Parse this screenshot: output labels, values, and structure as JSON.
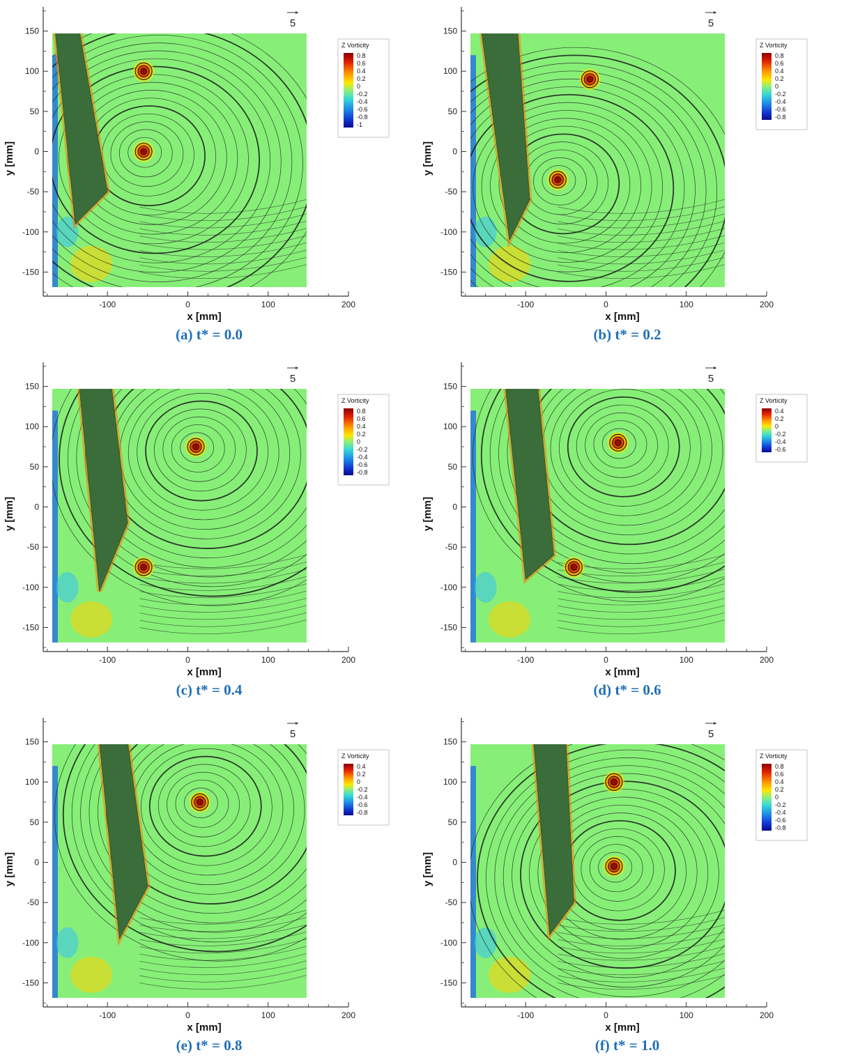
{
  "chart_data": [
    {
      "type": "heatmap",
      "title": "(a) t* = 0.0",
      "xlabel": "x [mm]",
      "ylabel": "y [mm]",
      "xlim": [
        -180,
        200
      ],
      "ylim": [
        -180,
        180
      ],
      "xticks": [
        -100,
        0,
        100,
        200
      ],
      "yticks": [
        -150,
        -100,
        -50,
        0,
        50,
        100,
        150
      ],
      "vector_reference": "5",
      "legend": {
        "title": "Z Vorticity",
        "ticks": [
          "0.8",
          "0.6",
          "0.4",
          "0.2",
          "0",
          "-0.2",
          "-0.4",
          "-0.6",
          "-0.8",
          "-1"
        ]
      },
      "body": [
        [
          -165,
          150
        ],
        [
          -135,
          150
        ],
        [
          -100,
          -50
        ],
        [
          -140,
          -90
        ]
      ],
      "vortices": [
        {
          "x": -55,
          "y": 0,
          "sign": "positive"
        },
        {
          "x": -55,
          "y": 100,
          "sign": "positive"
        }
      ]
    },
    {
      "type": "heatmap",
      "title": "(b) t* = 0.2",
      "xlabel": "x [mm]",
      "ylabel": "y [mm]",
      "xlim": [
        -180,
        200
      ],
      "ylim": [
        -180,
        180
      ],
      "xticks": [
        -100,
        0,
        100,
        200
      ],
      "yticks": [
        -150,
        -100,
        -50,
        0,
        50,
        100,
        150
      ],
      "vector_reference": "5",
      "legend": {
        "title": "Z Vorticity",
        "ticks": [
          "0.8",
          "0.6",
          "0.4",
          "0.2",
          "0",
          "-0.2",
          "-0.4",
          "-0.6",
          "-0.8"
        ]
      },
      "body": [
        [
          -155,
          150
        ],
        [
          -110,
          150
        ],
        [
          -95,
          -60
        ],
        [
          -120,
          -110
        ]
      ],
      "vortices": [
        {
          "x": -60,
          "y": -35,
          "sign": "positive"
        },
        {
          "x": -20,
          "y": 90,
          "sign": "positive"
        }
      ]
    },
    {
      "type": "heatmap",
      "title": "(c) t* = 0.4",
      "xlabel": "x [mm]",
      "ylabel": "y [mm]",
      "xlim": [
        -180,
        200
      ],
      "ylim": [
        -180,
        180
      ],
      "xticks": [
        -100,
        0,
        100,
        200
      ],
      "yticks": [
        -150,
        -100,
        -50,
        0,
        50,
        100,
        150
      ],
      "vector_reference": "5",
      "legend": {
        "title": "Z Vorticity",
        "ticks": [
          "0.8",
          "0.6",
          "0.4",
          "0.2",
          "0",
          "-0.2",
          "-0.4",
          "-0.6",
          "-0.8"
        ]
      },
      "body": [
        [
          -135,
          150
        ],
        [
          -95,
          150
        ],
        [
          -75,
          -20
        ],
        [
          -110,
          -105
        ]
      ],
      "vortices": [
        {
          "x": 10,
          "y": 75,
          "sign": "positive"
        },
        {
          "x": -55,
          "y": -75,
          "sign": "positive"
        }
      ]
    },
    {
      "type": "heatmap",
      "title": "(d) t* = 0.6",
      "xlabel": "x [mm]",
      "ylabel": "y [mm]",
      "xlim": [
        -180,
        200
      ],
      "ylim": [
        -180,
        180
      ],
      "xticks": [
        -100,
        0,
        100,
        200
      ],
      "yticks": [
        -150,
        -100,
        -50,
        0,
        50,
        100,
        150
      ],
      "vector_reference": "5",
      "legend": {
        "title": "Z Vorticity",
        "ticks": [
          "0.4",
          "0.2",
          "0",
          "-0.2",
          "-0.4",
          "-0.6"
        ]
      },
      "body": [
        [
          -125,
          150
        ],
        [
          -85,
          150
        ],
        [
          -65,
          -60
        ],
        [
          -100,
          -90
        ]
      ],
      "vortices": [
        {
          "x": 15,
          "y": 80,
          "sign": "positive"
        },
        {
          "x": -40,
          "y": -75,
          "sign": "positive"
        }
      ]
    },
    {
      "type": "heatmap",
      "title": "(e) t* = 0.8",
      "xlabel": "x [mm]",
      "ylabel": "y [mm]",
      "xlim": [
        -180,
        200
      ],
      "ylim": [
        -180,
        180
      ],
      "xticks": [
        -100,
        0,
        100,
        200
      ],
      "yticks": [
        -150,
        -100,
        -50,
        0,
        50,
        100,
        150
      ],
      "vector_reference": "5",
      "legend": {
        "title": "Z Vorticity",
        "ticks": [
          "0.4",
          "0.2",
          "0",
          "-0.2",
          "-0.4",
          "-0.6",
          "-0.8"
        ]
      },
      "body": [
        [
          -110,
          150
        ],
        [
          -75,
          150
        ],
        [
          -50,
          -30
        ],
        [
          -85,
          -95
        ]
      ],
      "vortices": [
        {
          "x": 15,
          "y": 75,
          "sign": "positive"
        }
      ]
    },
    {
      "type": "heatmap",
      "title": "(f) t* = 1.0",
      "xlabel": "x [mm]",
      "ylabel": "y [mm]",
      "xlim": [
        -180,
        200
      ],
      "ylim": [
        -180,
        180
      ],
      "xticks": [
        -100,
        0,
        100,
        200
      ],
      "yticks": [
        -150,
        -100,
        -50,
        0,
        50,
        100,
        150
      ],
      "vector_reference": "5",
      "legend": {
        "title": "Z Vorticity",
        "ticks": [
          "0.8",
          "0.6",
          "0.4",
          "0.2",
          "0",
          "-0.2",
          "-0.4",
          "-0.6",
          "-0.8"
        ]
      },
      "body": [
        [
          -90,
          150
        ],
        [
          -50,
          150
        ],
        [
          -40,
          -50
        ],
        [
          -70,
          -90
        ]
      ],
      "vortices": [
        {
          "x": 10,
          "y": -5,
          "sign": "positive"
        },
        {
          "x": 10,
          "y": 100,
          "sign": "positive"
        }
      ]
    }
  ]
}
